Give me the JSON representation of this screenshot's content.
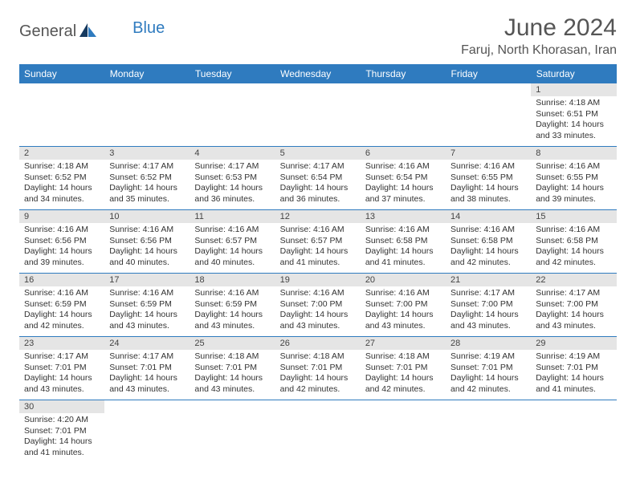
{
  "brand": {
    "part1": "General",
    "part2": "Blue"
  },
  "title": "June 2024",
  "location": "Faruj, North Khorasan, Iran",
  "header_bg": "#2f7bbf",
  "dayNames": [
    "Sunday",
    "Monday",
    "Tuesday",
    "Wednesday",
    "Thursday",
    "Friday",
    "Saturday"
  ],
  "weeks": [
    [
      null,
      null,
      null,
      null,
      null,
      null,
      {
        "n": "1",
        "sr": "4:18 AM",
        "ss": "6:51 PM",
        "dl": "14 hours and 33 minutes."
      }
    ],
    [
      {
        "n": "2",
        "sr": "4:18 AM",
        "ss": "6:52 PM",
        "dl": "14 hours and 34 minutes."
      },
      {
        "n": "3",
        "sr": "4:17 AM",
        "ss": "6:52 PM",
        "dl": "14 hours and 35 minutes."
      },
      {
        "n": "4",
        "sr": "4:17 AM",
        "ss": "6:53 PM",
        "dl": "14 hours and 36 minutes."
      },
      {
        "n": "5",
        "sr": "4:17 AM",
        "ss": "6:54 PM",
        "dl": "14 hours and 36 minutes."
      },
      {
        "n": "6",
        "sr": "4:16 AM",
        "ss": "6:54 PM",
        "dl": "14 hours and 37 minutes."
      },
      {
        "n": "7",
        "sr": "4:16 AM",
        "ss": "6:55 PM",
        "dl": "14 hours and 38 minutes."
      },
      {
        "n": "8",
        "sr": "4:16 AM",
        "ss": "6:55 PM",
        "dl": "14 hours and 39 minutes."
      }
    ],
    [
      {
        "n": "9",
        "sr": "4:16 AM",
        "ss": "6:56 PM",
        "dl": "14 hours and 39 minutes."
      },
      {
        "n": "10",
        "sr": "4:16 AM",
        "ss": "6:56 PM",
        "dl": "14 hours and 40 minutes."
      },
      {
        "n": "11",
        "sr": "4:16 AM",
        "ss": "6:57 PM",
        "dl": "14 hours and 40 minutes."
      },
      {
        "n": "12",
        "sr": "4:16 AM",
        "ss": "6:57 PM",
        "dl": "14 hours and 41 minutes."
      },
      {
        "n": "13",
        "sr": "4:16 AM",
        "ss": "6:58 PM",
        "dl": "14 hours and 41 minutes."
      },
      {
        "n": "14",
        "sr": "4:16 AM",
        "ss": "6:58 PM",
        "dl": "14 hours and 42 minutes."
      },
      {
        "n": "15",
        "sr": "4:16 AM",
        "ss": "6:58 PM",
        "dl": "14 hours and 42 minutes."
      }
    ],
    [
      {
        "n": "16",
        "sr": "4:16 AM",
        "ss": "6:59 PM",
        "dl": "14 hours and 42 minutes."
      },
      {
        "n": "17",
        "sr": "4:16 AM",
        "ss": "6:59 PM",
        "dl": "14 hours and 43 minutes."
      },
      {
        "n": "18",
        "sr": "4:16 AM",
        "ss": "6:59 PM",
        "dl": "14 hours and 43 minutes."
      },
      {
        "n": "19",
        "sr": "4:16 AM",
        "ss": "7:00 PM",
        "dl": "14 hours and 43 minutes."
      },
      {
        "n": "20",
        "sr": "4:16 AM",
        "ss": "7:00 PM",
        "dl": "14 hours and 43 minutes."
      },
      {
        "n": "21",
        "sr": "4:17 AM",
        "ss": "7:00 PM",
        "dl": "14 hours and 43 minutes."
      },
      {
        "n": "22",
        "sr": "4:17 AM",
        "ss": "7:00 PM",
        "dl": "14 hours and 43 minutes."
      }
    ],
    [
      {
        "n": "23",
        "sr": "4:17 AM",
        "ss": "7:01 PM",
        "dl": "14 hours and 43 minutes."
      },
      {
        "n": "24",
        "sr": "4:17 AM",
        "ss": "7:01 PM",
        "dl": "14 hours and 43 minutes."
      },
      {
        "n": "25",
        "sr": "4:18 AM",
        "ss": "7:01 PM",
        "dl": "14 hours and 43 minutes."
      },
      {
        "n": "26",
        "sr": "4:18 AM",
        "ss": "7:01 PM",
        "dl": "14 hours and 42 minutes."
      },
      {
        "n": "27",
        "sr": "4:18 AM",
        "ss": "7:01 PM",
        "dl": "14 hours and 42 minutes."
      },
      {
        "n": "28",
        "sr": "4:19 AM",
        "ss": "7:01 PM",
        "dl": "14 hours and 42 minutes."
      },
      {
        "n": "29",
        "sr": "4:19 AM",
        "ss": "7:01 PM",
        "dl": "14 hours and 41 minutes."
      }
    ],
    [
      {
        "n": "30",
        "sr": "4:20 AM",
        "ss": "7:01 PM",
        "dl": "14 hours and 41 minutes."
      },
      null,
      null,
      null,
      null,
      null,
      null
    ]
  ],
  "labels": {
    "sunrise": "Sunrise:",
    "sunset": "Sunset:",
    "daylight": "Daylight:"
  }
}
